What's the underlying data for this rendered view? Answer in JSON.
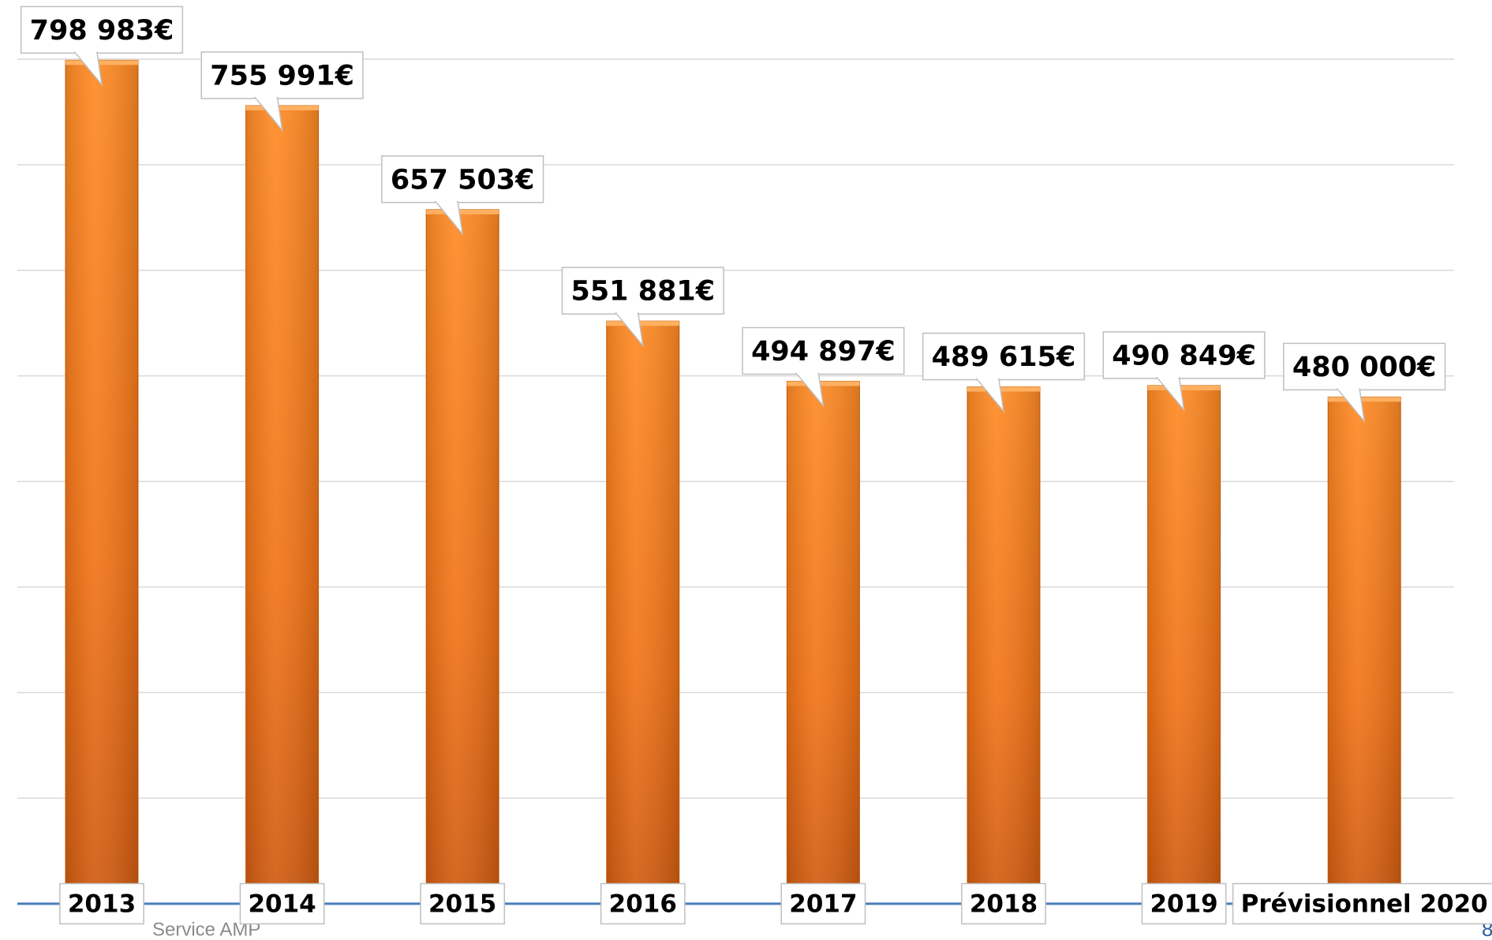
{
  "chart_data": {
    "type": "bar",
    "categories": [
      "2013",
      "2014",
      "2015",
      "2016",
      "2017",
      "2018",
      "2019",
      "Prévisionnel 2020"
    ],
    "values": [
      798983,
      755991,
      657503,
      551881,
      494897,
      489615,
      490849,
      480000
    ],
    "value_labels": [
      "798 983€",
      "755 991€",
      "657 503€",
      "551 881€",
      "494 897€",
      "489 615€",
      "490 849€",
      "480 000€"
    ],
    "color": "#f97a1c",
    "ylim": [
      0,
      800000
    ],
    "yticks": [
      0,
      100000,
      200000,
      300000,
      400000,
      500000,
      600000,
      700000,
      800000
    ],
    "grid": true
  },
  "footer": {
    "text": "Service AMP",
    "page": "8"
  }
}
